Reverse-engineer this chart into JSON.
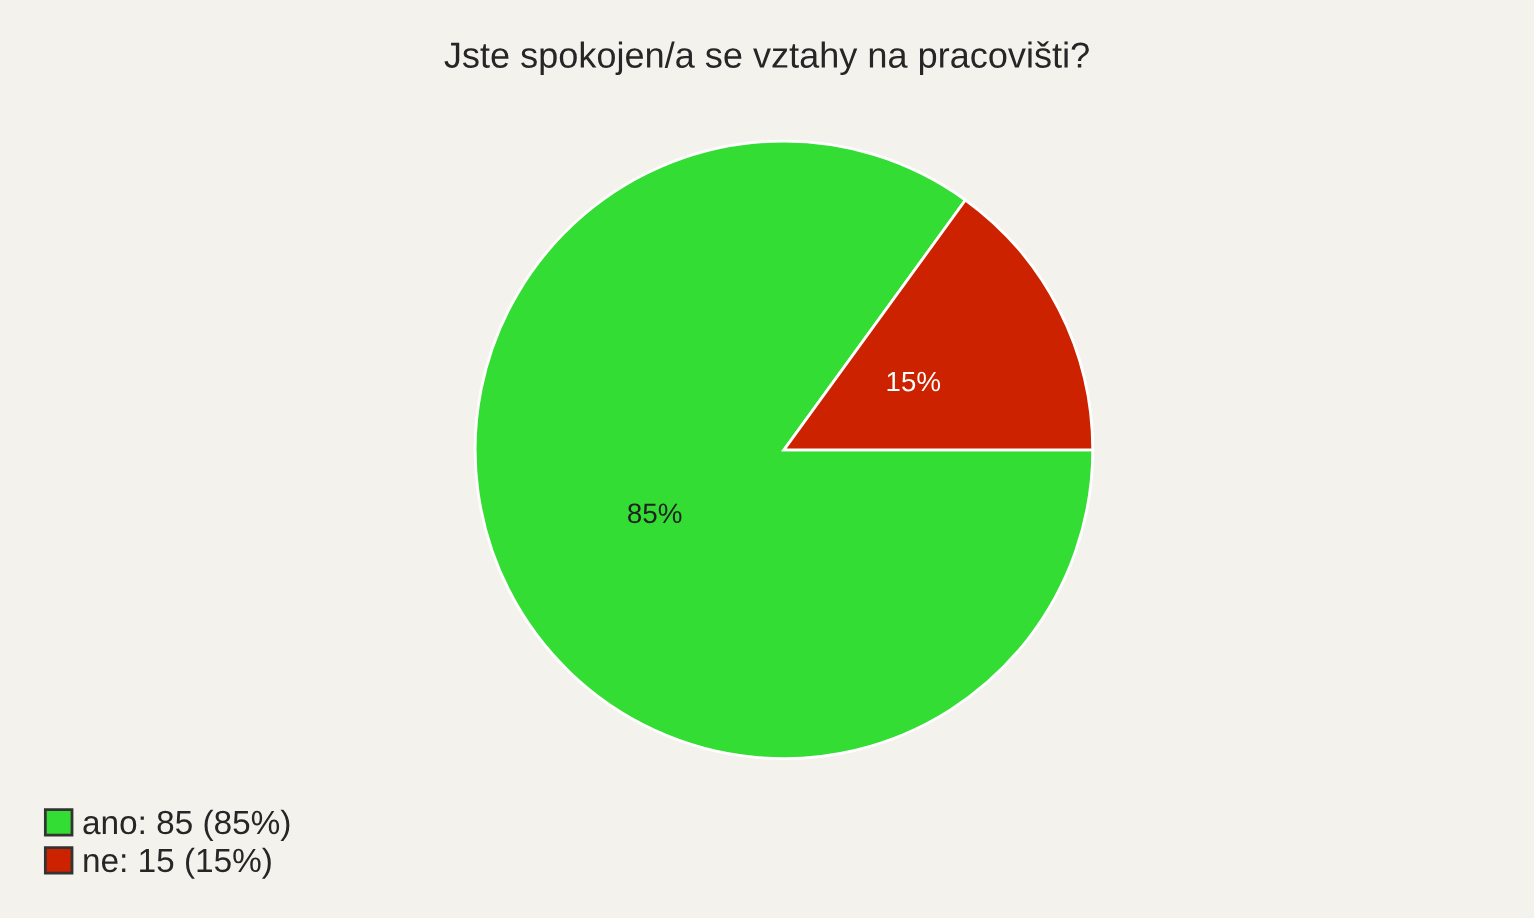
{
  "chart_data": {
    "type": "pie",
    "title": "Jste spokojen/a se vztahy na pracovišti?",
    "categories": [
      "ano: 85 (85%)",
      "ne: 15 (15%)"
    ],
    "values": [
      85,
      15
    ],
    "colors": [
      "#33dd33",
      "#cc2200"
    ],
    "value_labels": [
      "85%",
      "15%"
    ],
    "legend": "bottom left"
  }
}
